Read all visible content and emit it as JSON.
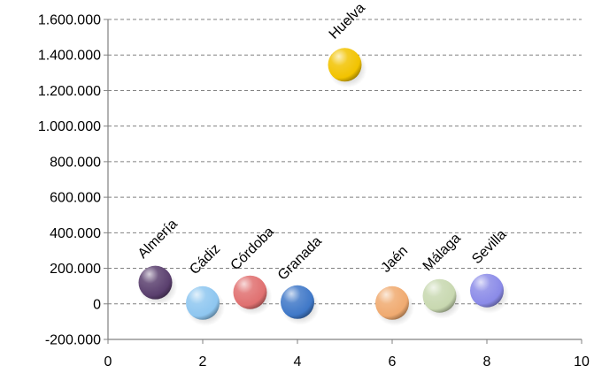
{
  "chart_data": {
    "type": "scatter",
    "title": "",
    "xlabel": "",
    "ylabel": "",
    "xlim": [
      0,
      10
    ],
    "ylim": [
      -200000,
      1600000
    ],
    "x_ticks": [
      0,
      2,
      4,
      6,
      8,
      10
    ],
    "x_tick_labels": [
      "0",
      "2",
      "4",
      "6",
      "8",
      "10"
    ],
    "y_ticks": [
      -200000,
      0,
      200000,
      400000,
      600000,
      800000,
      1000000,
      1200000,
      1400000,
      1600000
    ],
    "y_tick_labels": [
      "-200.000",
      "0",
      "200.000",
      "400.000",
      "600.000",
      "800.000",
      "1.000.000",
      "1.200.000",
      "1.400.000",
      "1.600.000"
    ],
    "grid": "horizontal-dashed",
    "legend": "none",
    "points": [
      {
        "label": "Almería",
        "x": 1,
        "y": 120000,
        "color": "#5a3f6e"
      },
      {
        "label": "Cádiz",
        "x": 2,
        "y": 5000,
        "color": "#8ec6f0"
      },
      {
        "label": "Córdoba",
        "x": 3,
        "y": 65000,
        "color": "#e07070"
      },
      {
        "label": "Granada",
        "x": 4,
        "y": 10000,
        "color": "#3f78c8"
      },
      {
        "label": "Huelva",
        "x": 5,
        "y": 1345000,
        "color": "#f2c300"
      },
      {
        "label": "Jaén",
        "x": 6,
        "y": 5000,
        "color": "#f0aa70"
      },
      {
        "label": "Málaga",
        "x": 7,
        "y": 45000,
        "color": "#c8d8b0"
      },
      {
        "label": "Sevilla",
        "x": 8,
        "y": 75000,
        "color": "#8a8ae8"
      }
    ]
  }
}
